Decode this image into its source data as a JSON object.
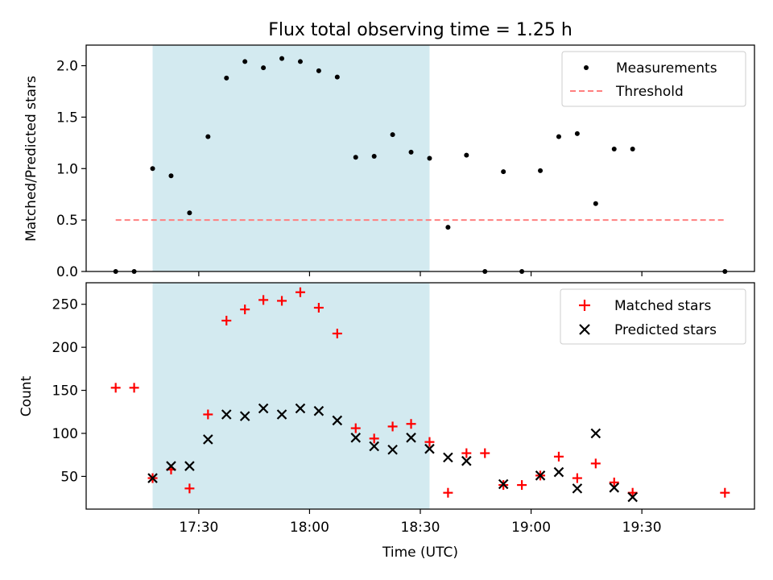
{
  "chart_data": {
    "title": "Flux total observing time = 1.25 h",
    "xlabel": "Time (UTC)",
    "x_ticks": [
      "17:30",
      "18:00",
      "18:30",
      "19:00",
      "19:30"
    ],
    "x_tick_minutes": [
      90,
      120,
      150,
      180,
      210
    ],
    "x_range_minutes": [
      59.5,
      240.5
    ],
    "shaded_span_minutes": [
      77.5,
      152.5
    ],
    "shade_color": "#d3eaf0",
    "panels": [
      {
        "type": "scatter",
        "ylabel": "Matched/Predicted stars",
        "ylim": [
          0,
          2.2
        ],
        "y_ticks": [
          "0.0",
          "0.5",
          "1.0",
          "1.5",
          "2.0"
        ],
        "y_tick_values": [
          0,
          0.5,
          1.0,
          1.5,
          2.0
        ],
        "series": [
          {
            "name": "Measurements",
            "marker": "dot",
            "color": "#000000",
            "x": [
              67.5,
              72.5,
              77.5,
              82.5,
              87.5,
              92.5,
              97.5,
              102.5,
              107.5,
              112.5,
              117.5,
              122.5,
              127.5,
              132.5,
              137.5,
              142.5,
              147.5,
              152.5,
              157.5,
              162.5,
              167.5,
              172.5,
              177.5,
              182.5,
              187.5,
              192.5,
              197.5,
              202.5,
              207.5,
              212.5,
              217.5,
              232.5
            ],
            "y": [
              0.0,
              0.0,
              1.0,
              0.93,
              0.57,
              1.31,
              1.88,
              2.04,
              1.98,
              2.07,
              2.04,
              1.95,
              1.89,
              1.11,
              1.12,
              1.33,
              1.16,
              1.1,
              0.43,
              1.13,
              0.0,
              0.97,
              0.0,
              0.98,
              1.31,
              1.34,
              0.66,
              1.19,
              1.19,
              null,
              null,
              0.0
            ]
          },
          {
            "name": "Threshold",
            "marker": "dashed-line",
            "color": "#ff7f7f",
            "x": [
              67.5,
              232.5
            ],
            "y": [
              0.5,
              0.5
            ]
          }
        ],
        "legend": "top-right"
      },
      {
        "type": "scatter",
        "ylabel": "Count",
        "ylim": [
          12,
          275
        ],
        "y_ticks": [
          "50",
          "100",
          "150",
          "200",
          "250"
        ],
        "y_tick_values": [
          50,
          100,
          150,
          200,
          250
        ],
        "series": [
          {
            "name": "Matched stars",
            "marker": "plus",
            "color": "#ff0000",
            "x": [
              67.5,
              72.5,
              77.5,
              82.5,
              87.5,
              92.5,
              97.5,
              102.5,
              107.5,
              112.5,
              117.5,
              122.5,
              127.5,
              132.5,
              137.5,
              142.5,
              147.5,
              152.5,
              157.5,
              162.5,
              167.5,
              172.5,
              177.5,
              182.5,
              187.5,
              192.5,
              197.5,
              202.5,
              207.5,
              212.5,
              217.5,
              232.5
            ],
            "y": [
              153,
              153,
              48,
              58,
              36,
              122,
              231,
              244,
              255,
              254,
              264,
              246,
              216,
              106,
              94,
              108,
              111,
              90,
              31,
              77,
              77,
              40,
              40,
              51,
              73,
              48,
              65,
              43,
              31,
              null,
              null,
              31
            ]
          },
          {
            "name": "Predicted stars",
            "marker": "x",
            "color": "#000000",
            "x": [
              77.5,
              82.5,
              87.5,
              92.5,
              97.5,
              102.5,
              107.5,
              112.5,
              117.5,
              122.5,
              127.5,
              132.5,
              137.5,
              142.5,
              147.5,
              152.5,
              157.5,
              162.5,
              172.5,
              182.5,
              187.5,
              192.5,
              197.5,
              202.5,
              207.5
            ],
            "y": [
              48,
              62,
              62,
              93,
              122,
              120,
              129,
              122,
              129,
              126,
              115,
              95,
              85,
              81,
              95,
              82,
              72,
              68,
              41,
              51,
              55,
              36,
              100,
              37,
              26
            ]
          }
        ],
        "legend": "top-right"
      }
    ]
  }
}
